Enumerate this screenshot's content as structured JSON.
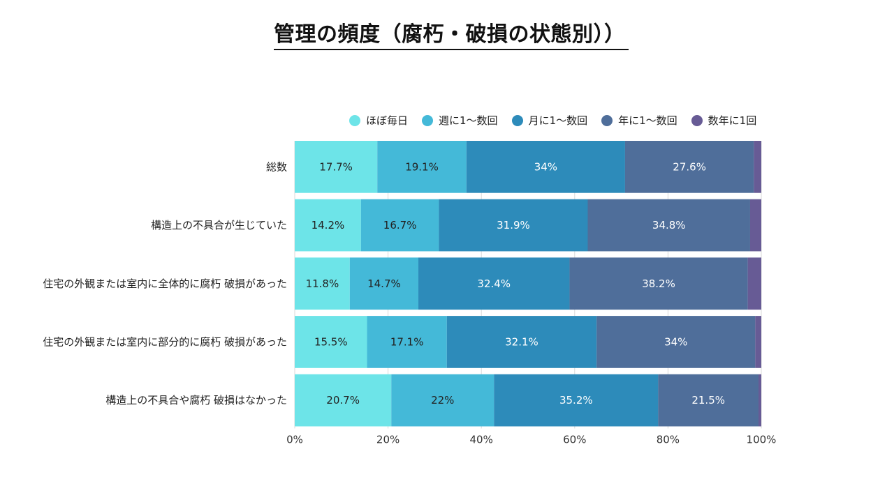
{
  "title": "管理の頻度（腐朽・破損の状態別））",
  "chart_data": {
    "type": "bar",
    "orientation": "horizontal",
    "stacked": true,
    "percent": true,
    "title": "管理の頻度（腐朽・破損の状態別））",
    "categories": [
      "総数",
      "構造上の不具合が生じていた",
      "住宅の外観または室内に全体的に腐朽 破損があった",
      "住宅の外観または室内に部分的に腐朽 破損があった",
      "構造上の不具合や腐朽 破損はなかった"
    ],
    "series": [
      {
        "name": "ほぼ毎日",
        "color": "#6de4e8",
        "values": [
          17.7,
          14.2,
          11.8,
          15.5,
          20.7
        ]
      },
      {
        "name": "週に1～数回",
        "color": "#44b9d8",
        "values": [
          19.1,
          16.7,
          14.7,
          17.1,
          22
        ]
      },
      {
        "name": "月に1～数回",
        "color": "#2d8bba",
        "values": [
          34,
          31.9,
          32.4,
          32.1,
          35.2
        ]
      },
      {
        "name": "年に1～数回",
        "color": "#4f6e9a",
        "values": [
          27.6,
          34.8,
          38.2,
          34,
          21.5
        ]
      },
      {
        "name": "数年に1回",
        "color": "#675b95",
        "values": [
          1.6,
          2.4,
          2.9,
          1.3,
          0.6
        ]
      }
    ],
    "data_labels": [
      [
        "17.7%",
        "19.1%",
        "34%",
        "27.6%",
        ""
      ],
      [
        "14.2%",
        "16.7%",
        "31.9%",
        "34.8%",
        ""
      ],
      [
        "11.8%",
        "14.7%",
        "32.4%",
        "38.2%",
        ""
      ],
      [
        "15.5%",
        "17.1%",
        "32.1%",
        "34%",
        ""
      ],
      [
        "20.7%",
        "22%",
        "35.2%",
        "21.5%",
        ""
      ]
    ],
    "xlim": [
      0,
      100
    ],
    "x_ticks": [
      "0%",
      "20%",
      "40%",
      "60%",
      "80%",
      "100%"
    ],
    "label_colors": [
      "#222222",
      "#222222",
      "#ffffff",
      "#ffffff",
      "#ffffff"
    ],
    "grid": true,
    "legend_position": "top"
  }
}
